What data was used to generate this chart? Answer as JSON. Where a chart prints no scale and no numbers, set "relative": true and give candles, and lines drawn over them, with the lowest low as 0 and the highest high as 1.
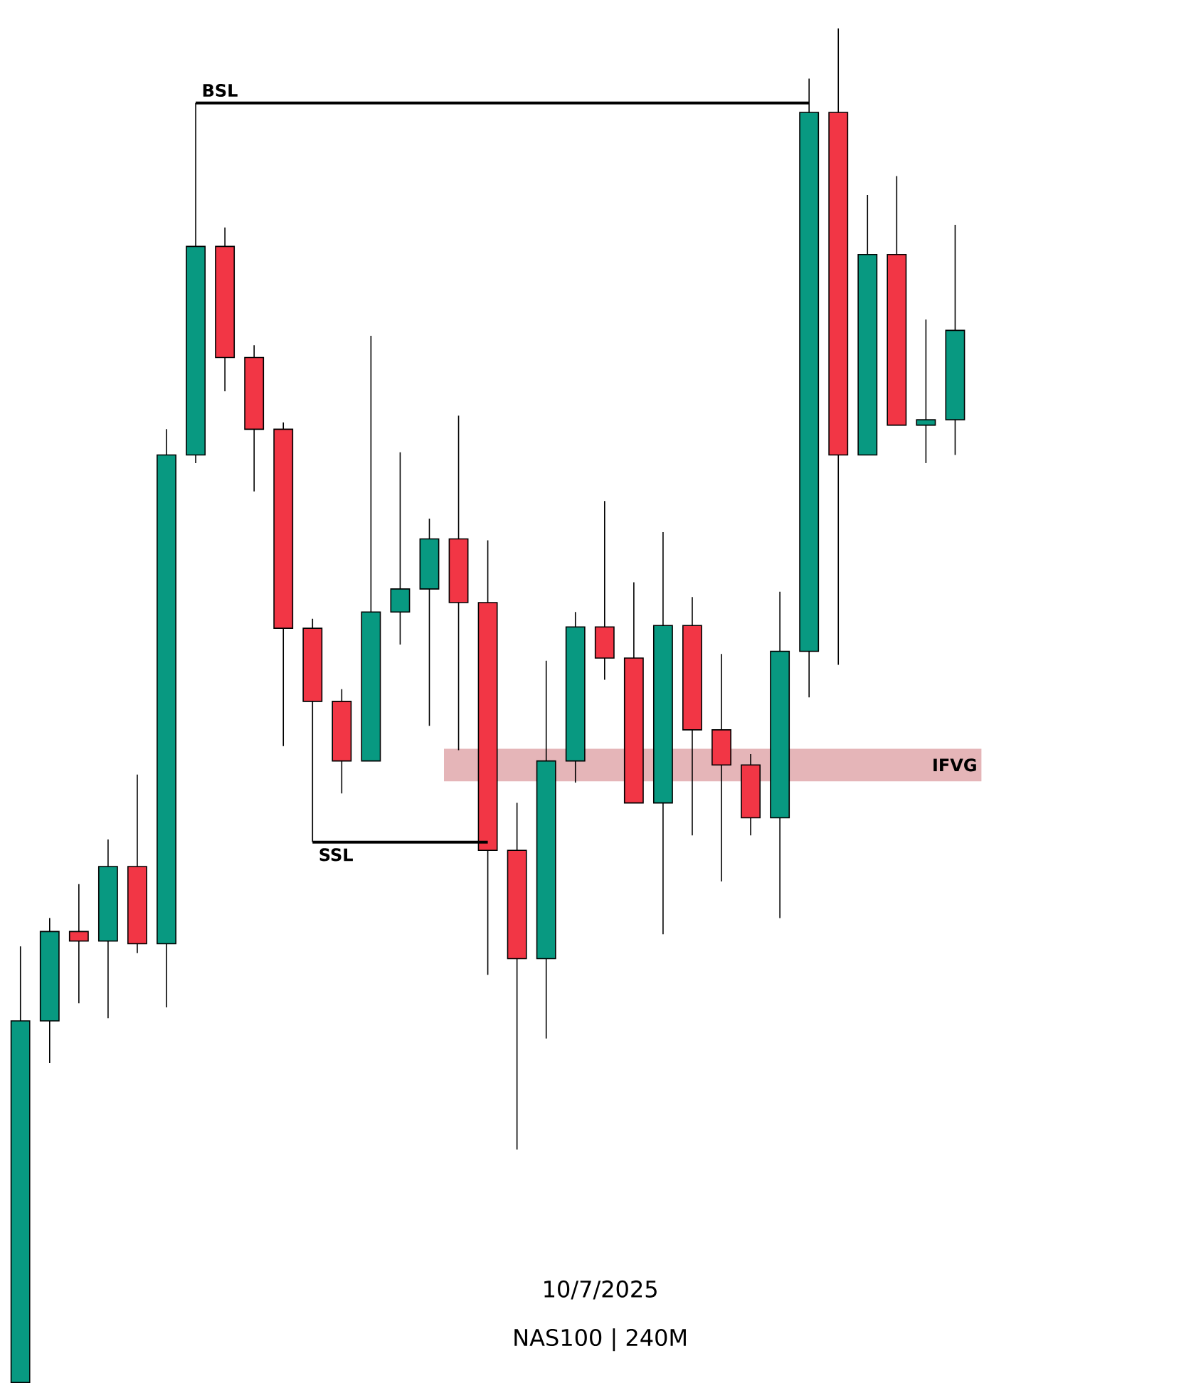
{
  "chart_data": {
    "type": "candlestick",
    "relative": true,
    "title": "10/7/2025",
    "subtitle": "NAS100 | 240M",
    "categories": [
      null,
      null,
      null,
      null,
      null,
      null,
      null,
      null,
      null,
      null,
      null,
      null,
      null,
      null,
      null,
      null,
      null,
      null,
      null,
      null,
      null,
      null,
      null,
      null,
      null,
      null,
      null,
      null,
      null,
      null,
      null,
      null,
      null
    ],
    "ohlc": [
      [
        0,
        0.322,
        0,
        0.267
      ],
      [
        0.267,
        0.343,
        0.236,
        0.333
      ],
      [
        0.333,
        0.368,
        0.28,
        0.326
      ],
      [
        0.326,
        0.401,
        0.269,
        0.381
      ],
      [
        0.381,
        0.449,
        0.317,
        0.324
      ],
      [
        0.324,
        0.704,
        0.277,
        0.685
      ],
      [
        0.685,
        0.945,
        0.679,
        0.839
      ],
      [
        0.839,
        0.853,
        0.732,
        0.757
      ],
      [
        0.757,
        0.766,
        0.658,
        0.704
      ],
      [
        0.704,
        0.709,
        0.47,
        0.557
      ],
      [
        0.557,
        0.564,
        0.399,
        0.503
      ],
      [
        0.503,
        0.512,
        0.435,
        0.459
      ],
      [
        0.459,
        0.773,
        0.459,
        0.569
      ],
      [
        0.569,
        0.687,
        0.545,
        0.586
      ],
      [
        0.586,
        0.638,
        0.485,
        0.623
      ],
      [
        0.623,
        0.714,
        0.467,
        0.576
      ],
      [
        0.576,
        0.622,
        0.301,
        0.393
      ],
      [
        0.393,
        0.428,
        0.172,
        0.313
      ],
      [
        0.313,
        0.533,
        0.254,
        0.459
      ],
      [
        0.459,
        0.569,
        0.443,
        0.558
      ],
      [
        0.558,
        0.651,
        0.519,
        0.535
      ],
      [
        0.535,
        0.591,
        0.428,
        0.428
      ],
      [
        0.428,
        0.628,
        0.331,
        0.559
      ],
      [
        0.559,
        0.58,
        0.404,
        0.482
      ],
      [
        0.482,
        0.538,
        0.37,
        0.456
      ],
      [
        0.456,
        0.464,
        0.404,
        0.417
      ],
      [
        0.417,
        0.584,
        0.343,
        0.54
      ],
      [
        0.54,
        0.963,
        0.506,
        0.938
      ],
      [
        0.938,
        1,
        0.53,
        0.685
      ],
      [
        0.685,
        0.877,
        0.685,
        0.833
      ],
      [
        0.833,
        0.891,
        0.707,
        0.707
      ],
      [
        0.707,
        0.785,
        0.679,
        0.711
      ],
      [
        0.711,
        0.855,
        0.685,
        0.777
      ]
    ],
    "colors": [
      "#089981",
      "#089981",
      "#f23645",
      "#089981",
      "#f23645",
      "#089981",
      "#089981",
      "#f23645",
      "#f23645",
      "#f23645",
      "#f23645",
      "#f23645",
      "#089981",
      "#089981",
      "#089981",
      "#f23645",
      "#f23645",
      "#f23645",
      "#089981",
      "#089981",
      "#f23645",
      "#f23645",
      "#089981",
      "#f23645",
      "#f23645",
      "#f23645",
      "#089981",
      "#089981",
      "#f23645",
      "#089981",
      "#f23645",
      "#089981",
      "#089981"
    ],
    "ref_lines": [
      {
        "axis": "y",
        "value": 0.945,
        "label": "BSL",
        "color": "#000000"
      },
      {
        "axis": "y",
        "value": 0.399,
        "label": "SSL",
        "color": "#000000"
      }
    ],
    "bands": [
      {
        "axis": "y",
        "from": 0.444,
        "to": 0.468,
        "label": "IFVG",
        "color": "#e5b5b8"
      }
    ]
  }
}
